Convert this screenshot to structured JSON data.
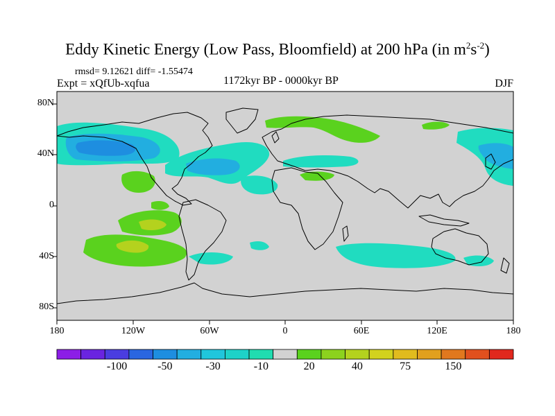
{
  "title": {
    "main": "Eddy Kinetic Energy (Low Pass, Bloomfield) at 200 hPa (in m",
    "sup1": "2",
    "mid": "s",
    "sup2": "-2",
    "end": ")"
  },
  "stats": "rmsd= 9.12621 diff= -1.55474",
  "experiment": "Expt = xQfUb-xqfua",
  "period": "1172kyr BP - 0000kyr BP",
  "season": "DJF",
  "lat_labels": [
    "80N",
    "40N",
    "0",
    "40S",
    "80S"
  ],
  "lon_labels": [
    "180",
    "120W",
    "60W",
    "0",
    "60E",
    "120E",
    "180"
  ],
  "colorbar": {
    "colors": [
      "#8c1ee6",
      "#6a24e0",
      "#4a3de0",
      "#2a66e0",
      "#1e8ee0",
      "#22aee0",
      "#20c6dc",
      "#1ed2c8",
      "#20dcb0",
      "#d2d2d2",
      "#5ad21e",
      "#8cd21e",
      "#b4d21e",
      "#d2d21e",
      "#e1bb1e",
      "#e1a01e",
      "#e1781e",
      "#e1501e",
      "#e1281e"
    ],
    "labels": [
      "-100",
      "-50",
      "-30",
      "-10",
      "20",
      "40",
      "75",
      "150"
    ]
  },
  "colors": {
    "land_ocean_bg": "#d2d2d2",
    "cyan": "#20dcc0",
    "blue": "#22aee0",
    "deep_blue": "#1e8ee0",
    "green": "#5ad21e",
    "yellow_green": "#b4d21e"
  }
}
